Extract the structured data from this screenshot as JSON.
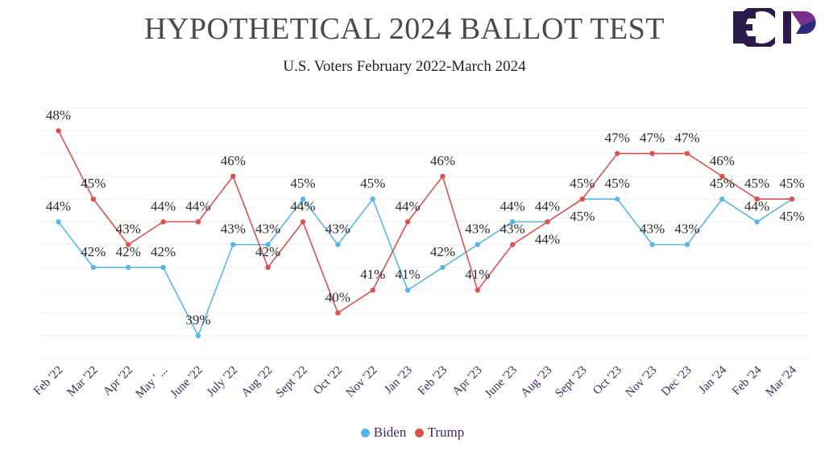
{
  "header": {
    "title": "HYPOTHETICAL 2024 BALLOT TEST",
    "subtitle": "U.S. Voters February 2022-March 2024",
    "logo_text": "ECP"
  },
  "colors": {
    "biden": "#5bb5e6",
    "trump": "#d9534f",
    "axis_text": "#3b2b5a",
    "logo_dark": "#2b1a4a",
    "logo_purple": "#7b2d8e",
    "logo_navy": "#2b2b78"
  },
  "chart_data": {
    "type": "line",
    "title": "HYPOTHETICAL 2024 BALLOT TEST",
    "subtitle": "U.S. Voters February 2022-March 2024",
    "xlabel": "",
    "ylabel": "",
    "ylim": [
      38,
      49
    ],
    "grid": true,
    "legend_position": "bottom",
    "categories": [
      "Feb '22",
      "Mar '22",
      "Apr '22",
      "May ' ...",
      "June '22",
      "July '22",
      "Aug '22",
      "Sept '22",
      "Oct '22",
      "Nov '22",
      "Jan '23",
      "Feb '23",
      "Apr '23",
      "June '23",
      "Aug '23",
      "Sept '23",
      "Oct '23",
      "Nov '23",
      "Dec '23",
      "Jan '24",
      "Feb '24",
      "Mar '24"
    ],
    "series": [
      {
        "name": "Biden",
        "color": "#5bb5e6",
        "values": [
          44,
          42,
          42,
          42,
          39,
          43,
          43,
          45,
          43,
          45,
          41,
          42,
          43,
          44,
          44,
          45,
          45,
          43,
          43,
          45,
          44,
          45
        ],
        "labels": [
          "44%",
          "42%",
          "42%",
          "42%",
          "39%",
          "43%",
          "43%",
          "45%",
          "43%",
          "45%",
          "41%",
          "42%",
          "43%",
          "44%",
          "44%",
          "45%",
          "45%",
          "43%",
          "43%",
          "45%",
          "44%",
          "45%"
        ],
        "label_position": [
          "above",
          "above",
          "above",
          "above",
          "above",
          "above",
          "above",
          "above",
          "above",
          "above",
          "above",
          "above",
          "above",
          "above",
          "above",
          "below",
          "above",
          "above",
          "above",
          "above",
          "above",
          "below"
        ]
      },
      {
        "name": "Trump",
        "color": "#d9534f",
        "values": [
          48,
          45,
          43,
          44,
          44,
          46,
          42,
          44,
          40,
          41,
          44,
          46,
          41,
          43,
          44,
          45,
          47,
          47,
          47,
          46,
          45,
          45
        ],
        "labels": [
          "48%",
          "45%",
          "43%",
          "44%",
          "44%",
          "46%",
          "42%",
          "44%",
          "40%",
          "41%",
          "44%",
          "46%",
          "41%",
          "43%",
          "44%",
          "45%",
          "47%",
          "47%",
          "47%",
          "46%",
          "45%",
          "45%"
        ],
        "label_position": [
          "above",
          "above",
          "above",
          "above",
          "above",
          "above",
          "above",
          "above",
          "above",
          "above",
          "above",
          "above",
          "above",
          "above",
          "below",
          "above",
          "above",
          "above",
          "above",
          "above",
          "above",
          "above"
        ]
      }
    ]
  },
  "legend": {
    "items": [
      {
        "label": "Biden"
      },
      {
        "label": "Trump"
      }
    ]
  }
}
